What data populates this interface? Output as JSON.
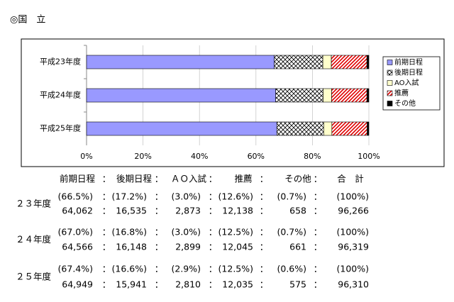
{
  "heading": "◎国　立",
  "chart_data": {
    "type": "bar",
    "orientation": "horizontal",
    "stacked": true,
    "legend": "right",
    "grid": true,
    "categories": [
      "平成23年度",
      "平成24年度",
      "平成25年度"
    ],
    "series": [
      {
        "name": "前期日程",
        "color": "#9999ff",
        "values": [
          66.5,
          67.0,
          67.4
        ]
      },
      {
        "name": "後期日程",
        "color": "#ffffff",
        "pattern": "crosshatch",
        "values": [
          17.2,
          16.8,
          16.6
        ]
      },
      {
        "name": "AO入試",
        "color": "#ffffcc",
        "values": [
          3.0,
          3.0,
          2.9
        ]
      },
      {
        "name": "推薦",
        "color": "#ff0000",
        "pattern": "diagonal",
        "values": [
          12.6,
          12.5,
          12.5
        ]
      },
      {
        "name": "その他",
        "color": "#000000",
        "values": [
          0.7,
          0.7,
          0.6
        ]
      }
    ],
    "xlim": [
      0,
      100
    ],
    "xticks": [
      {
        "value": 0,
        "label": "0%"
      },
      {
        "value": 20,
        "label": "20%"
      },
      {
        "value": 40,
        "label": "40%"
      },
      {
        "value": 60,
        "label": "60%"
      },
      {
        "value": 80,
        "label": "80%"
      },
      {
        "value": 100,
        "label": "100%"
      }
    ]
  },
  "table": {
    "header": [
      "前期日程",
      "後期日程",
      "ＡＯ入試",
      "推薦",
      "その他",
      "合　計"
    ],
    "separator": "：",
    "rows": [
      {
        "label": "２３年度",
        "shares": [
          "(66.5%)",
          "(17.2%)",
          "(3.0%)",
          "(12.6%)",
          "(0.7%)",
          "(100%)"
        ],
        "counts": [
          "64,062",
          "16,535",
          "2,873",
          "12,138",
          "658",
          "96,266"
        ]
      },
      {
        "label": "２４年度",
        "shares": [
          "(67.0%)",
          "(16.8%)",
          "(3.0%)",
          "(12.5%)",
          "(0.7%)",
          "(100%)"
        ],
        "counts": [
          "64,566",
          "16,148",
          "2,899",
          "12,045",
          "661",
          "96,319"
        ]
      },
      {
        "label": "２５年度",
        "shares": [
          "(67.4%)",
          "(16.6%)",
          "(2.9%)",
          "(12.5%)",
          "(0.6%)",
          "(100%)"
        ],
        "counts": [
          "64,949",
          "15,941",
          "2,810",
          "12,035",
          "575",
          "96,310"
        ]
      }
    ]
  }
}
